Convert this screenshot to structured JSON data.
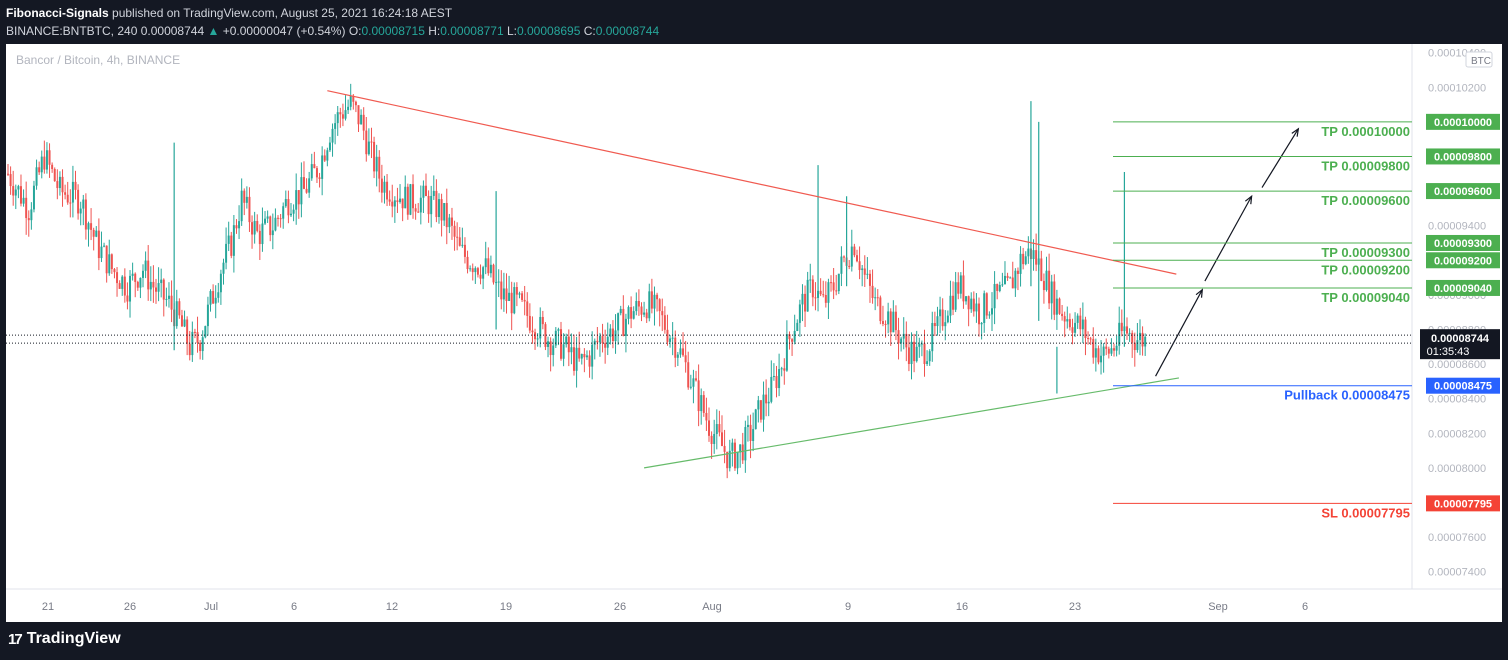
{
  "header": {
    "author": "Fibonacci-Signals",
    "published": "published on TradingView.com, August 25, 2021 16:24:18 AEST",
    "symbol_line": "BINANCE:BNTBTC, 240",
    "last": "0.00008744",
    "change": "+0.00000047 (+0.54%)",
    "o_label": "O:",
    "o": "0.00008715",
    "h_label": "H:",
    "h": "0.00008771",
    "l_label": "L:",
    "l": "0.00008695",
    "c_label": "C:",
    "c": "0.00008744"
  },
  "footer": {
    "brand": "TradingView",
    "logo_glyph": "17"
  },
  "colors": {
    "up": "#26a69a",
    "down": "#ef5350",
    "tp": "#4caf50",
    "sl": "#f44336",
    "pullback": "#2962ff",
    "resistance": "#f05a50",
    "support": "#66bb6a",
    "last_label_bg": "#131722"
  },
  "chart_data": {
    "type": "candlestick",
    "title": "Bancor / Bitcoin, 4h, BINANCE",
    "currency": "BTC",
    "ylim": [
      7.3e-05,
      0.0001045
    ],
    "y_ticks": [
      "0.00007400",
      "0.00007600",
      "0.00008000",
      "0.00008200",
      "0.00008400",
      "0.00008600",
      "0.00008800",
      "0.00009000",
      "0.00009400",
      "0.00010200",
      "0.00010400"
    ],
    "x_labels": [
      "21",
      "26",
      "Jul",
      "6",
      "12",
      "19",
      "26",
      "Aug",
      "9",
      "16",
      "23",
      "Sep",
      "6"
    ],
    "levels": [
      {
        "label": "TP 0.00010000",
        "price": "0.00010000",
        "value": 0.0001,
        "kind": "tp"
      },
      {
        "label": "TP 0.00009800",
        "price": "0.00009800",
        "value": 9.8e-05,
        "kind": "tp"
      },
      {
        "label": "TP 0.00009600",
        "price": "0.00009600",
        "value": 9.6e-05,
        "kind": "tp"
      },
      {
        "label": "TP 0.00009300",
        "price": "0.00009300",
        "value": 9.3e-05,
        "kind": "tp"
      },
      {
        "label": "TP 0.00009200",
        "price": "0.00009200",
        "value": 9.2e-05,
        "kind": "tp"
      },
      {
        "label": "TP 0.00009040",
        "price": "0.00009040",
        "value": 9.04e-05,
        "kind": "tp"
      },
      {
        "label": "Pullback 0.00008475",
        "price": "0.00008475",
        "value": 8.475e-05,
        "kind": "pullback"
      },
      {
        "label": "SL 0.00007795",
        "price": "0.00007795",
        "value": 7.795e-05,
        "kind": "sl"
      }
    ],
    "last_price": {
      "value": 8.744e-05,
      "label": "0.00008744",
      "countdown": "01:35:43"
    },
    "price_path": [
      [
        0,
        9.7e-05
      ],
      [
        8,
        9.5e-05
      ],
      [
        14,
        9.8e-05
      ],
      [
        20,
        9.6e-05
      ],
      [
        28,
        9.55e-05
      ],
      [
        34,
        9.3e-05
      ],
      [
        40,
        9.15e-05
      ],
      [
        46,
        9.05e-05
      ],
      [
        52,
        9.15e-05
      ],
      [
        56,
        9.05e-05
      ],
      [
        62,
        8.95e-05
      ],
      [
        66,
        8.85e-05
      ],
      [
        70,
        8.7e-05
      ],
      [
        74,
        8.75e-05
      ],
      [
        78,
        8.95e-05
      ],
      [
        82,
        9.15e-05
      ],
      [
        86,
        9.3e-05
      ],
      [
        90,
        9.55e-05
      ],
      [
        96,
        9.35e-05
      ],
      [
        102,
        9.4e-05
      ],
      [
        108,
        9.55e-05
      ],
      [
        114,
        9.6e-05
      ],
      [
        120,
        9.75e-05
      ],
      [
        124,
        9.95e-05
      ],
      [
        128,
        0.0001005
      ],
      [
        132,
        0.000101
      ],
      [
        136,
        0.0001
      ],
      [
        140,
        9.8e-05
      ],
      [
        144,
        9.65e-05
      ],
      [
        148,
        9.6e-05
      ],
      [
        154,
        9.55e-05
      ],
      [
        160,
        9.55e-05
      ],
      [
        166,
        9.5e-05
      ],
      [
        170,
        9.4e-05
      ],
      [
        174,
        9.25e-05
      ],
      [
        178,
        9.2e-05
      ],
      [
        184,
        9.15e-05
      ],
      [
        190,
        9e-05
      ],
      [
        196,
        8.95e-05
      ],
      [
        202,
        8.85e-05
      ],
      [
        208,
        8.75e-05
      ],
      [
        214,
        8.7e-05
      ],
      [
        220,
        8.6e-05
      ],
      [
        224,
        8.65e-05
      ],
      [
        228,
        8.75e-05
      ],
      [
        234,
        8.8e-05
      ],
      [
        240,
        8.9e-05
      ],
      [
        246,
        8.95e-05
      ],
      [
        250,
        8.9e-05
      ],
      [
        254,
        8.8e-05
      ],
      [
        258,
        8.7e-05
      ],
      [
        262,
        8.55e-05
      ],
      [
        266,
        8.4e-05
      ],
      [
        270,
        8.25e-05
      ],
      [
        274,
        8.15e-05
      ],
      [
        278,
        8.05e-05
      ],
      [
        282,
        8.1e-05
      ],
      [
        286,
        8.2e-05
      ],
      [
        290,
        8.35e-05
      ],
      [
        294,
        8.45e-05
      ],
      [
        298,
        8.6e-05
      ],
      [
        302,
        8.8e-05
      ],
      [
        306,
        8.95e-05
      ],
      [
        310,
        9.05e-05
      ],
      [
        314,
        8.95e-05
      ],
      [
        318,
        9.05e-05
      ],
      [
        322,
        9.2e-05
      ],
      [
        326,
        9.3e-05
      ],
      [
        330,
        9.1e-05
      ],
      [
        334,
        8.95e-05
      ],
      [
        338,
        8.9e-05
      ],
      [
        342,
        8.8e-05
      ],
      [
        346,
        8.7e-05
      ],
      [
        350,
        8.65e-05
      ],
      [
        354,
        8.7e-05
      ],
      [
        358,
        8.8e-05
      ],
      [
        362,
        8.95e-05
      ],
      [
        366,
        9.05e-05
      ],
      [
        370,
        9e-05
      ],
      [
        374,
        8.9e-05
      ],
      [
        378,
        8.95e-05
      ],
      [
        382,
        9e-05
      ],
      [
        386,
        9.05e-05
      ],
      [
        390,
        9.2e-05
      ],
      [
        394,
        9.25e-05
      ],
      [
        398,
        9.15e-05
      ],
      [
        402,
        9e-05
      ],
      [
        406,
        8.9e-05
      ],
      [
        410,
        8.85e-05
      ],
      [
        414,
        8.8e-05
      ],
      [
        418,
        8.7e-05
      ],
      [
        422,
        8.65e-05
      ],
      [
        426,
        8.7e-05
      ],
      [
        430,
        8.8e-05
      ],
      [
        434,
        8.75e-05
      ],
      [
        438,
        8.74e-05
      ]
    ],
    "spikes": [
      {
        "t": 64,
        "high": 9.88e-05,
        "low": 8.68e-05
      },
      {
        "t": 188,
        "high": 9.6e-05,
        "low": 8.8e-05
      },
      {
        "t": 312,
        "high": 9.75e-05,
        "low": 9e-05
      },
      {
        "t": 323,
        "high": 9.57e-05,
        "low": 9.05e-05
      },
      {
        "t": 394,
        "high": 0.0001012,
        "low": 9.05e-05
      },
      {
        "t": 397,
        "high": 0.0001,
        "low": 8.85e-05
      },
      {
        "t": 404,
        "high": 8.7e-05,
        "low": 8.43e-05
      },
      {
        "t": 430,
        "high": 9.71e-05,
        "low": 8.7e-05
      }
    ],
    "trendlines": [
      {
        "kind": "resistance",
        "from": [
          123,
          0.0001018
        ],
        "to": [
          450,
          9.12e-05
        ]
      },
      {
        "kind": "support",
        "from": [
          245,
          8e-05
        ],
        "to": [
          451,
          8.52e-05
        ]
      }
    ],
    "arrows": [
      {
        "from": [
          442,
          8.53e-05
        ],
        "to": [
          460,
          9.03e-05
        ]
      },
      {
        "from": [
          461,
          9.08e-05
        ],
        "to": [
          479,
          9.57e-05
        ]
      },
      {
        "from": [
          483,
          9.62e-05
        ],
        "to": [
          497,
          9.96e-05
        ]
      }
    ]
  }
}
